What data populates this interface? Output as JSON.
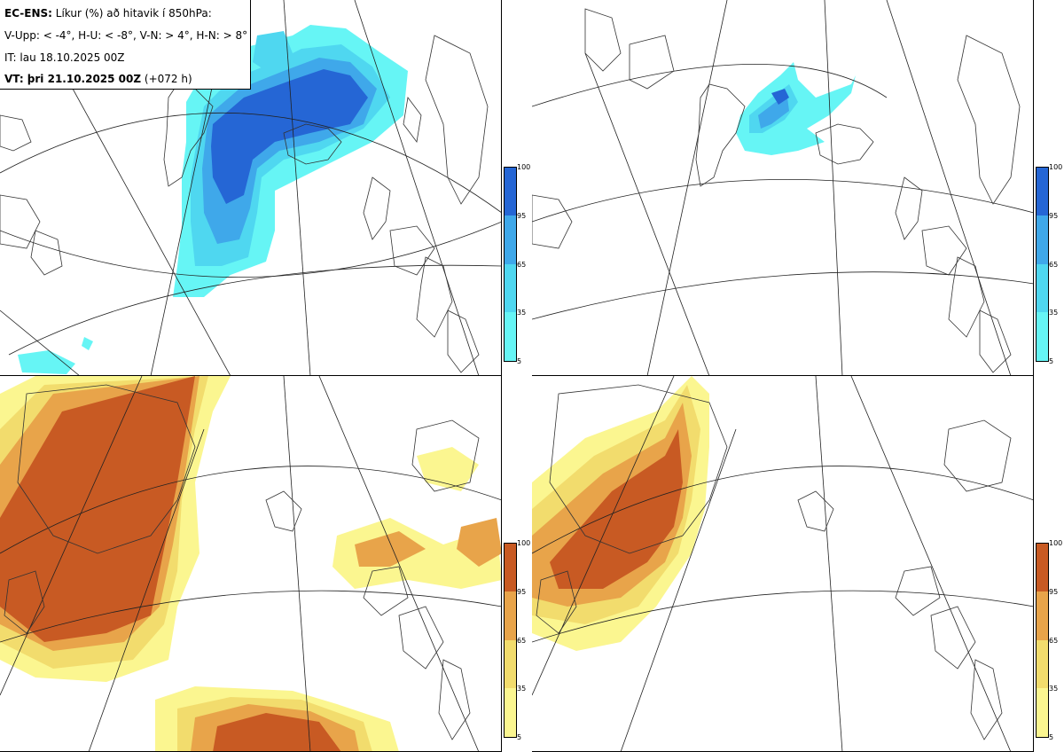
{
  "info": {
    "line1_bold": "EC-ENS:",
    "line1_text": " Líkur (%) að hitavik í 850hPa:",
    "line2": "V-Upp: < -4°, H-U: < -8°, V-N: > 4°, H-N: > 8°",
    "line3": "IT: lau 18.10.2025 00Z",
    "line4_bold": "VT: þri 21.10.2025 00Z",
    "line4_text": " (+072 h)"
  },
  "colorbar_labels": [
    "100",
    "95",
    "65",
    "35",
    "5"
  ],
  "colors": {
    "cold": [
      "#66f5f5",
      "#4fd7f0",
      "#3fa8ea",
      "#2566d5"
    ],
    "warm": [
      "#fbf690",
      "#f2dc6d",
      "#e8a44a",
      "#c85a23"
    ],
    "coast": "#333333",
    "grid": "#222222"
  },
  "panels": [
    {
      "id": "V-Upp",
      "palette": "cold"
    },
    {
      "id": "H-U",
      "palette": "cold"
    },
    {
      "id": "V-N",
      "palette": "warm"
    },
    {
      "id": "H-N",
      "palette": "warm"
    }
  ]
}
